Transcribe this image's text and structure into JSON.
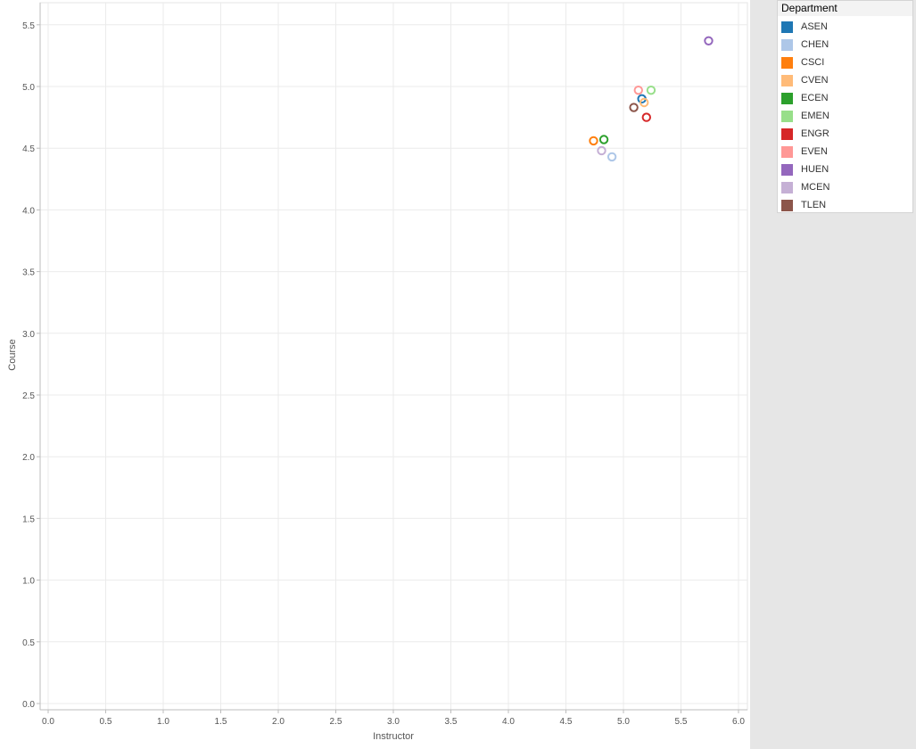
{
  "chart_data": {
    "type": "scatter",
    "xlabel": "Instructor",
    "ylabel": "Course",
    "xlim": [
      0,
      6
    ],
    "ylim": [
      0,
      5.6
    ],
    "x_ticks": [
      "0.0",
      "0.5",
      "1.0",
      "1.5",
      "2.0",
      "2.5",
      "3.0",
      "3.5",
      "4.0",
      "4.5",
      "5.0",
      "5.5",
      "6.0"
    ],
    "y_ticks": [
      "0.0",
      "0.5",
      "1.0",
      "1.5",
      "2.0",
      "2.5",
      "3.0",
      "3.5",
      "4.0",
      "4.5",
      "5.0",
      "5.5"
    ],
    "grid": true,
    "marker": "hollow-circle",
    "legend_position": "right",
    "legend_title": "Department",
    "series": [
      {
        "name": "ASEN",
        "color": "#1f77b4",
        "x": 5.16,
        "y": 4.9
      },
      {
        "name": "CHEN",
        "color": "#aec7e8",
        "x": 4.9,
        "y": 4.43
      },
      {
        "name": "CSCI",
        "color": "#ff7f0e",
        "x": 4.74,
        "y": 4.56
      },
      {
        "name": "CVEN",
        "color": "#ffbb78",
        "x": 5.18,
        "y": 4.87
      },
      {
        "name": "ECEN",
        "color": "#2ca02c",
        "x": 4.83,
        "y": 4.57
      },
      {
        "name": "EMEN",
        "color": "#98df8a",
        "x": 5.24,
        "y": 4.97
      },
      {
        "name": "ENGR",
        "color": "#d62728",
        "x": 5.2,
        "y": 4.75
      },
      {
        "name": "EVEN",
        "color": "#ff9896",
        "x": 5.13,
        "y": 4.97
      },
      {
        "name": "HUEN",
        "color": "#9467bd",
        "x": 5.74,
        "y": 5.37
      },
      {
        "name": "MCEN",
        "color": "#c5b0d5",
        "x": 4.81,
        "y": 4.48
      },
      {
        "name": "TLEN",
        "color": "#8c564b",
        "x": 5.09,
        "y": 4.83
      }
    ]
  }
}
